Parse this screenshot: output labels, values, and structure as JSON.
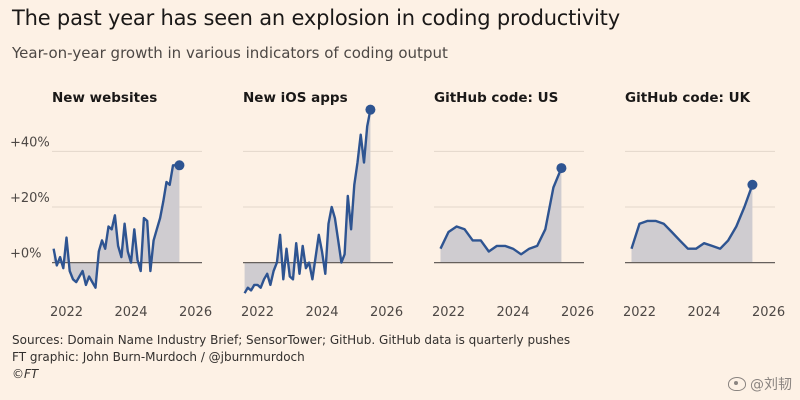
{
  "header": {
    "title": "The past year has seen an explosion in coding productivity",
    "subtitle": "Year-on-year growth in various indicators of coding output"
  },
  "footer": {
    "sources": "Sources: Domain Name Industry Brief; SensorTower; GitHub. GitHub data is quarterly pushes",
    "credit": "FT graphic: John Burn-Murdoch / @jburnmurdoch",
    "copyright": "©FT"
  },
  "watermark": {
    "text": "@刘韧",
    "icon": "weibo-icon"
  },
  "colors": {
    "line": "#2e5491",
    "area": "#cfccd0",
    "zero": "#66605c",
    "grid": "#e3d7cb",
    "background": "#fdf1e5"
  },
  "chart_data": [
    {
      "type": "area",
      "title": "New websites",
      "x": [
        2021.6,
        2021.7,
        2021.8,
        2021.9,
        2022.0,
        2022.1,
        2022.2,
        2022.3,
        2022.4,
        2022.5,
        2022.6,
        2022.7,
        2022.8,
        2022.9,
        2023.0,
        2023.1,
        2023.2,
        2023.3,
        2023.4,
        2023.5,
        2023.6,
        2023.7,
        2023.8,
        2023.9,
        2024.0,
        2024.1,
        2024.2,
        2024.3,
        2024.4,
        2024.5,
        2024.6,
        2024.7,
        2024.8,
        2024.9,
        2025.0,
        2025.1,
        2025.2,
        2025.3,
        2025.4,
        2025.5
      ],
      "values": [
        5,
        -1,
        2,
        -2,
        9,
        -3,
        -6,
        -7,
        -5,
        -3,
        -8,
        -5,
        -7,
        -9,
        4,
        8,
        5,
        13,
        12,
        17,
        6,
        2,
        14,
        4,
        0,
        12,
        1,
        -3,
        16,
        15,
        -3,
        8,
        12,
        16,
        22,
        29,
        28,
        35,
        35,
        35
      ],
      "yticks": [
        0,
        20,
        40
      ],
      "ytick_labels": [
        "+0%",
        "+20%",
        "+40%"
      ],
      "xticks": [
        2022,
        2024,
        2026
      ],
      "ylim": [
        -12,
        52
      ],
      "xlim": [
        2021.55,
        2026.2
      ],
      "endpoint": true
    },
    {
      "type": "area",
      "title": "New iOS apps",
      "x": [
        2021.6,
        2021.7,
        2021.8,
        2021.9,
        2022.0,
        2022.1,
        2022.2,
        2022.3,
        2022.4,
        2022.5,
        2022.6,
        2022.7,
        2022.8,
        2022.9,
        2023.0,
        2023.1,
        2023.2,
        2023.3,
        2023.4,
        2023.5,
        2023.6,
        2023.7,
        2023.8,
        2023.9,
        2024.0,
        2024.1,
        2024.2,
        2024.3,
        2024.4,
        2024.5,
        2024.6,
        2024.7,
        2024.8,
        2024.9,
        2025.0,
        2025.1,
        2025.2,
        2025.3,
        2025.4,
        2025.5
      ],
      "values": [
        -11,
        -9,
        -10,
        -8,
        -8,
        -9,
        -6,
        -4,
        -8,
        -3,
        0,
        10,
        -6,
        5,
        -5,
        -6,
        7,
        -4,
        6,
        -2,
        0,
        -6,
        2,
        10,
        4,
        -4,
        14,
        20,
        16,
        8,
        0,
        3,
        24,
        12,
        28,
        36,
        46,
        36,
        49,
        55
      ],
      "yticks": [
        0,
        20,
        40
      ],
      "ytick_labels": [],
      "xticks": [
        2022,
        2024,
        2026
      ],
      "ylim": [
        -12,
        52
      ],
      "xlim": [
        2021.55,
        2026.2
      ],
      "endpoint": true
    },
    {
      "type": "area",
      "title": "GitHub code: US",
      "x": [
        2021.75,
        2022.0,
        2022.25,
        2022.5,
        2022.75,
        2023.0,
        2023.25,
        2023.5,
        2023.75,
        2024.0,
        2024.25,
        2024.5,
        2024.75,
        2025.0,
        2025.25,
        2025.5
      ],
      "values": [
        5,
        11,
        13,
        12,
        8,
        8,
        4,
        6,
        6,
        5,
        3,
        5,
        6,
        12,
        27,
        34
      ],
      "yticks": [
        0,
        20,
        40
      ],
      "ytick_labels": [],
      "xticks": [
        2022,
        2024,
        2026
      ],
      "ylim": [
        -12,
        52
      ],
      "xlim": [
        2021.55,
        2026.2
      ],
      "endpoint": true
    },
    {
      "type": "area",
      "title": "GitHub code: UK",
      "x": [
        2021.75,
        2022.0,
        2022.25,
        2022.5,
        2022.75,
        2023.0,
        2023.25,
        2023.5,
        2023.75,
        2024.0,
        2024.25,
        2024.5,
        2024.75,
        2025.0,
        2025.25,
        2025.5
      ],
      "values": [
        5,
        14,
        15,
        15,
        14,
        11,
        8,
        5,
        5,
        7,
        6,
        5,
        8,
        13,
        20,
        28
      ],
      "yticks": [
        0,
        20,
        40
      ],
      "ytick_labels": [],
      "xticks": [
        2022,
        2024,
        2026
      ],
      "ylim": [
        -12,
        52
      ],
      "xlim": [
        2021.55,
        2026.2
      ],
      "endpoint": true
    }
  ]
}
